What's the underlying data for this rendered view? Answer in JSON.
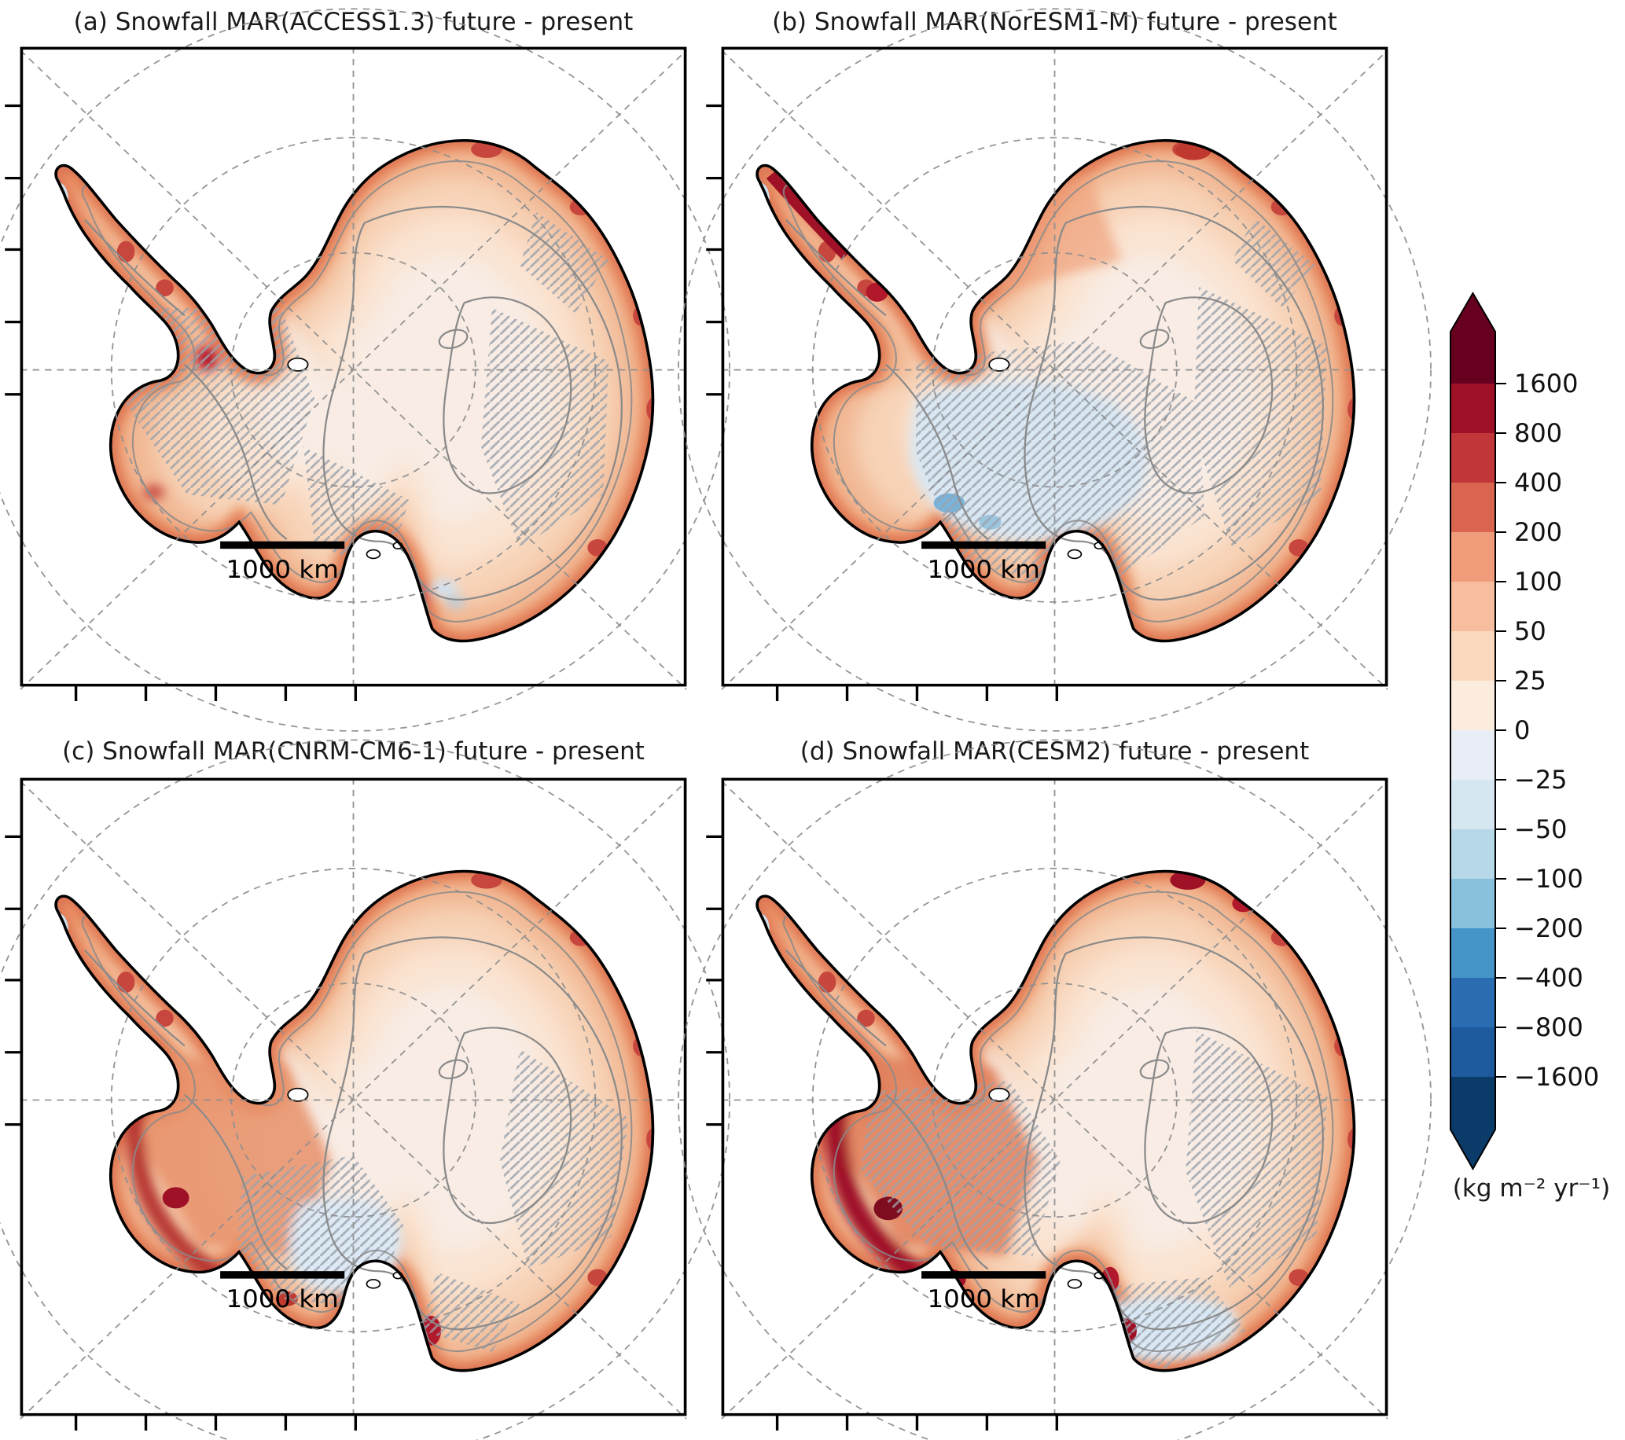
{
  "figure": {
    "background": "#ffffff",
    "panels": [
      {
        "id": "a",
        "title": "(a) Snowfall MAR(ACCESS1.3) future - present",
        "scale_bar_label": "1000 km"
      },
      {
        "id": "b",
        "title": "(b) Snowfall MAR(NorESM1-M) future - present",
        "scale_bar_label": "1000 km"
      },
      {
        "id": "c",
        "title": "(c) Snowfall MAR(CNRM-CM6-1) future - present",
        "scale_bar_label": "1000 km"
      },
      {
        "id": "d",
        "title": "(d) Snowfall MAR(CESM2) future - present",
        "scale_bar_label": "1000 km"
      }
    ],
    "colorbar": {
      "units": "(kg m⁻² yr⁻¹)",
      "extend": "both",
      "tick_labels": [
        "1600",
        "800",
        "400",
        "200",
        "100",
        "50",
        "25",
        "0",
        "−25",
        "−50",
        "−100",
        "−200",
        "−400",
        "−800",
        "−1600"
      ],
      "colors_top_to_bottom": [
        "#67001f",
        "#9e1127",
        "#c13639",
        "#d96450",
        "#f09c7b",
        "#f6bd9e",
        "#fad9bf",
        "#fcecdd",
        "#e9eef6",
        "#d7e7f2",
        "#b7d8e9",
        "#89c0dd",
        "#4695c8",
        "#2b6db3",
        "#1e5b9e",
        "#0a3b69"
      ]
    }
  },
  "chart_data": {
    "type": "heatmap",
    "subtype": "polar-stereographic map panels of Antarctica, filled anomaly field with hatching for non-significant/sigma regions",
    "title": "Snowfall change (future - present) simulated by MAR forced by four ESMs",
    "variable": "Snowfall difference, future minus present",
    "units": "kg m-2 yr-1",
    "region": "Antarctic Ice Sheet",
    "panels": [
      {
        "label": "(a)",
        "model": "MAR(ACCESS1.3)",
        "pattern": "moderate snowfall increase (50-400) around coastal margins, near-zero change over interior plateau, small decreases (blue) at Antarctic Peninsula tip and a small coastal spot near Ross/Victoria Land; hatching over much of West Antarctica and East Antarctic sector"
      },
      {
        "label": "(b)",
        "model": "MAR(NorESM1-M)",
        "pattern": "strong coastal increases, especially Peninsula and Dronning Maud Land; distinct snowfall decrease (−25 to −200) over Siple Coast / Ross sector of West Antarctica (hatched); broad hatching over East Antarctic interior"
      },
      {
        "label": "(c)",
        "model": "MAR(CNRM-CM6-1)",
        "pattern": "strong widespread increases (100-800) along entire West Antarctic and coastal margins, weak decrease (−25 to −50, hatched) near Siple Coast; interior increases 25-100"
      },
      {
        "label": "(d)",
        "model": "MAR(CESM2)",
        "pattern": "strongest increases (200-1600) along Peninsula, Marie Byrd Land and Dronning Maud Land coasts; slight decreases near Victoria Land / southeast coastal band; interior increases 25-100"
      }
    ],
    "color_scale": {
      "levels": [
        -1600,
        -800,
        -400,
        -200,
        -100,
        -50,
        -25,
        0,
        25,
        50,
        100,
        200,
        400,
        800,
        1600
      ],
      "colors_low_to_high": [
        "#0a3b69",
        "#1e5b9e",
        "#2b6db3",
        "#4695c8",
        "#89c0dd",
        "#b7d8e9",
        "#d7e7f2",
        "#e9eef6",
        "#fcecdd",
        "#fad9bf",
        "#f6bd9e",
        "#f09c7b",
        "#d96450",
        "#c13639",
        "#9e1127",
        "#67001f"
      ],
      "extend": "both",
      "colormap": "RdBu reversed, discrete"
    },
    "scale_bar": "1000 km",
    "graticule": "dashed gray circles (parallels) and radial meridians every 45 degrees",
    "legend_position": "single vertical colorbar at right"
  }
}
